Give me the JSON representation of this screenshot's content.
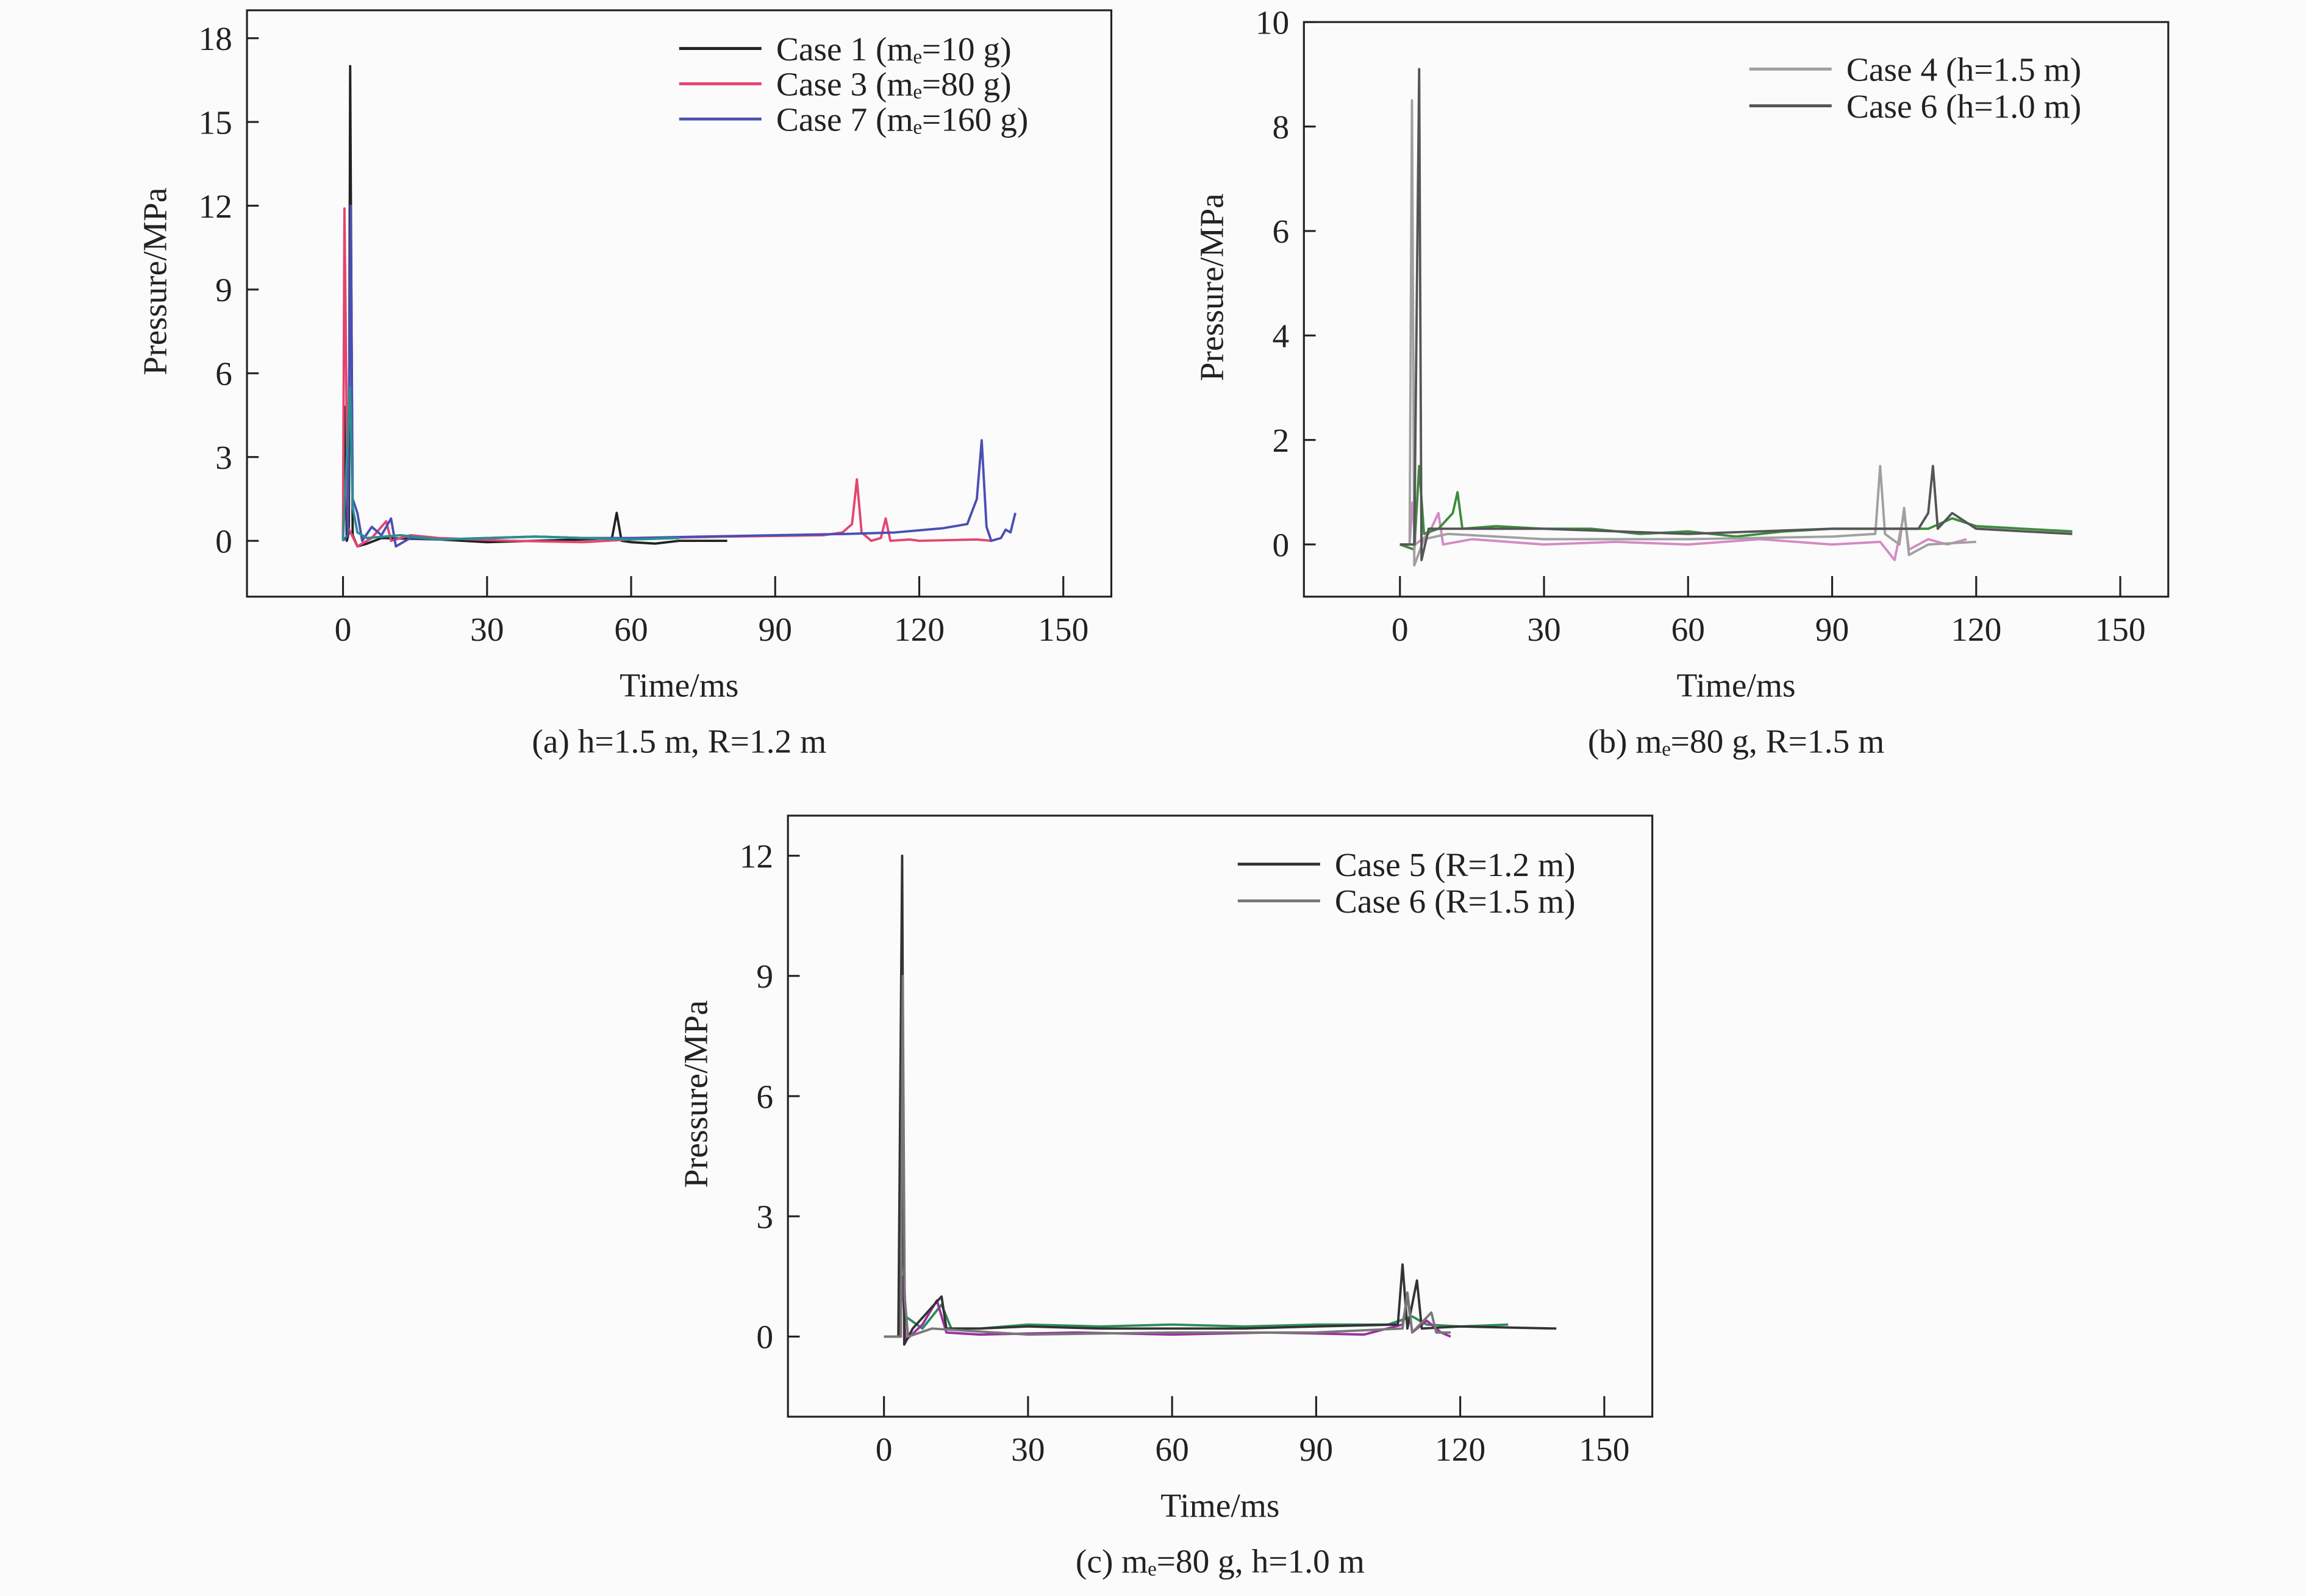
{
  "chart_data": [
    {
      "type": "line",
      "id": "a",
      "caption": "(a) h=1.5 m, R=1.2 m",
      "xlabel": "Time/ms",
      "ylabel": "Pressure/MPa",
      "xlim": [
        -20,
        160
      ],
      "ylim": [
        -2,
        19
      ],
      "xticks": [
        0,
        30,
        60,
        90,
        120,
        150
      ],
      "yticks": [
        0,
        3,
        6,
        9,
        12,
        15,
        18
      ],
      "legend_position": "top-right",
      "series": [
        {
          "name": "Case 1 (mₑ=10 g)",
          "legend": true,
          "color": "#222222",
          "points": [
            [
              0,
              0
            ],
            [
              0.5,
              4.8
            ],
            [
              0.8,
              0
            ],
            [
              1.2,
              0.3
            ],
            [
              1.5,
              17
            ],
            [
              2,
              0.2
            ],
            [
              3,
              -0.2
            ],
            [
              5,
              -0.1
            ],
            [
              8,
              0.1
            ],
            [
              20,
              0.05
            ],
            [
              30,
              -0.05
            ],
            [
              40,
              0
            ],
            [
              50,
              0.05
            ],
            [
              56,
              0.1
            ],
            [
              57,
              1
            ],
            [
              58,
              0
            ],
            [
              60,
              -0.05
            ],
            [
              65,
              -0.1
            ],
            [
              70,
              0
            ],
            [
              80,
              0
            ]
          ]
        },
        {
          "name": "Case 3 (mₑ=80 g)",
          "legend": true,
          "color": "#e4456f",
          "points": [
            [
              0,
              0
            ],
            [
              0.3,
              11.9
            ],
            [
              1,
              0.5
            ],
            [
              3,
              -0.2
            ],
            [
              6,
              0.1
            ],
            [
              9,
              0.7
            ],
            [
              10,
              0
            ],
            [
              14,
              0.2
            ],
            [
              20,
              0.1
            ],
            [
              35,
              0
            ],
            [
              50,
              -0.05
            ],
            [
              65,
              0.1
            ],
            [
              80,
              0.15
            ],
            [
              100,
              0.2
            ],
            [
              104,
              0.3
            ],
            [
              106,
              0.6
            ],
            [
              107,
              2.2
            ],
            [
              108,
              0.3
            ],
            [
              110,
              0
            ],
            [
              112,
              0.1
            ],
            [
              113,
              0.8
            ],
            [
              114,
              0
            ],
            [
              118,
              0.05
            ],
            [
              120,
              0
            ],
            [
              132,
              0.05
            ],
            [
              135,
              0
            ]
          ]
        },
        {
          "name": "Case 7 (mₑ=160 g)",
          "legend": true,
          "color": "#4a4fb4",
          "points": [
            [
              0,
              0
            ],
            [
              1,
              0.2
            ],
            [
              1.6,
              12
            ],
            [
              2,
              1.5
            ],
            [
              3,
              1.0
            ],
            [
              4,
              0
            ],
            [
              6,
              0.5
            ],
            [
              8,
              0.2
            ],
            [
              10,
              0.8
            ],
            [
              11,
              -0.2
            ],
            [
              14,
              0.1
            ],
            [
              20,
              0.05
            ],
            [
              30,
              0.1
            ],
            [
              40,
              0.15
            ],
            [
              50,
              0.1
            ],
            [
              60,
              0.1
            ],
            [
              75,
              0.15
            ],
            [
              90,
              0.2
            ],
            [
              105,
              0.25
            ],
            [
              115,
              0.3
            ],
            [
              125,
              0.45
            ],
            [
              130,
              0.6
            ],
            [
              132,
              1.5
            ],
            [
              133,
              3.6
            ],
            [
              134,
              0.5
            ],
            [
              135,
              0
            ],
            [
              137,
              0.1
            ],
            [
              138,
              0.4
            ],
            [
              139,
              0.3
            ],
            [
              140,
              1
            ]
          ]
        },
        {
          "name": "",
          "legend": false,
          "color": "#2a8f8f",
          "points": [
            [
              0,
              0
            ],
            [
              1.5,
              5.5
            ],
            [
              2,
              1.2
            ],
            [
              3,
              0.3
            ],
            [
              5,
              0.1
            ],
            [
              12,
              0.2
            ],
            [
              20,
              0.05
            ],
            [
              40,
              0.15
            ],
            [
              60,
              0.05
            ],
            [
              70,
              0.1
            ]
          ]
        }
      ]
    },
    {
      "type": "line",
      "id": "b",
      "caption": "(b) mₑ=80 g, R=1.5 m",
      "xlabel": "Time/ms",
      "ylabel": "Pressure/MPa",
      "xlim": [
        -20,
        160
      ],
      "ylim": [
        -1,
        10
      ],
      "xticks": [
        0,
        30,
        60,
        90,
        120,
        150
      ],
      "yticks": [
        0,
        2,
        4,
        6,
        8,
        10
      ],
      "legend_position": "top-right",
      "series": [
        {
          "name": "",
          "legend": false,
          "color": "#d48ac4",
          "points": [
            [
              0,
              0
            ],
            [
              2,
              0
            ],
            [
              2.6,
              0.8
            ],
            [
              3.2,
              0
            ],
            [
              6,
              0.2
            ],
            [
              8,
              0.6
            ],
            [
              9,
              0
            ],
            [
              15,
              0.1
            ],
            [
              30,
              0
            ],
            [
              45,
              0.05
            ],
            [
              60,
              0
            ],
            [
              75,
              0.1
            ],
            [
              90,
              0
            ],
            [
              100,
              0.05
            ],
            [
              103,
              -0.3
            ],
            [
              105,
              0.6
            ],
            [
              106,
              -0.1
            ],
            [
              110,
              0.1
            ],
            [
              114,
              0
            ],
            [
              118,
              0.1
            ]
          ]
        },
        {
          "name": "",
          "legend": false,
          "color": "#3c8c3c",
          "points": [
            [
              0,
              0
            ],
            [
              3,
              -0.1
            ],
            [
              4,
              1.5
            ],
            [
              5,
              0.2
            ],
            [
              8,
              0.3
            ],
            [
              11,
              0.6
            ],
            [
              12,
              1.0
            ],
            [
              13,
              0.3
            ],
            [
              20,
              0.35
            ],
            [
              30,
              0.3
            ],
            [
              40,
              0.3
            ],
            [
              50,
              0.2
            ],
            [
              60,
              0.25
            ],
            [
              70,
              0.15
            ],
            [
              80,
              0.25
            ],
            [
              90,
              0.3
            ],
            [
              100,
              0.3
            ],
            [
              110,
              0.3
            ],
            [
              115,
              0.5
            ],
            [
              120,
              0.35
            ],
            [
              130,
              0.3
            ],
            [
              140,
              0.25
            ]
          ]
        },
        {
          "name": "Case 4 (h=1.5 m)",
          "legend": true,
          "color": "#a0a0a0",
          "points": [
            [
              0,
              0
            ],
            [
              2,
              0
            ],
            [
              2.5,
              8.5
            ],
            [
              3,
              -0.4
            ],
            [
              5,
              0.1
            ],
            [
              10,
              0.2
            ],
            [
              30,
              0.1
            ],
            [
              60,
              0.1
            ],
            [
              90,
              0.15
            ],
            [
              99,
              0.2
            ],
            [
              100,
              1.5
            ],
            [
              101,
              0.2
            ],
            [
              104,
              0
            ],
            [
              105,
              0.7
            ],
            [
              106,
              -0.2
            ],
            [
              110,
              0
            ],
            [
              120,
              0.05
            ]
          ]
        },
        {
          "name": "Case 6 (h=1.0 m)",
          "legend": true,
          "color": "#555555",
          "points": [
            [
              0,
              0
            ],
            [
              3,
              0
            ],
            [
              4,
              9.1
            ],
            [
              4.5,
              -0.3
            ],
            [
              6,
              0.3
            ],
            [
              10,
              0.3
            ],
            [
              30,
              0.3
            ],
            [
              60,
              0.2
            ],
            [
              90,
              0.3
            ],
            [
              108,
              0.3
            ],
            [
              110,
              0.6
            ],
            [
              111,
              1.5
            ],
            [
              112,
              0.3
            ],
            [
              115,
              0.6
            ],
            [
              120,
              0.3
            ],
            [
              140,
              0.2
            ]
          ]
        }
      ]
    },
    {
      "type": "line",
      "id": "c",
      "caption": "(c) mₑ=80 g, h=1.0 m",
      "xlabel": "Time/ms",
      "ylabel": "Pressure/MPa",
      "xlim": [
        -20,
        160
      ],
      "ylim": [
        -2,
        13
      ],
      "xticks": [
        0,
        30,
        60,
        90,
        120,
        150
      ],
      "yticks": [
        0,
        3,
        6,
        9,
        12
      ],
      "legend_position": "top-right",
      "series": [
        {
          "name": "",
          "legend": false,
          "color": "#2e8b57",
          "points": [
            [
              3,
              0
            ],
            [
              3.9,
              2.5
            ],
            [
              4.5,
              0.5
            ],
            [
              8,
              0.2
            ],
            [
              12,
              0.8
            ],
            [
              14,
              0.2
            ],
            [
              20,
              0.2
            ],
            [
              30,
              0.3
            ],
            [
              45,
              0.25
            ],
            [
              60,
              0.3
            ],
            [
              75,
              0.25
            ],
            [
              90,
              0.3
            ],
            [
              105,
              0.3
            ],
            [
              110,
              0.5
            ],
            [
              113,
              0.3
            ],
            [
              120,
              0.25
            ],
            [
              130,
              0.3
            ]
          ]
        },
        {
          "name": "",
          "legend": false,
          "color": "#9b30a0",
          "points": [
            [
              3,
              0
            ],
            [
              3.8,
              1.5
            ],
            [
              4.5,
              -0.1
            ],
            [
              8,
              0.3
            ],
            [
              11,
              0.9
            ],
            [
              13,
              0.1
            ],
            [
              20,
              0.05
            ],
            [
              40,
              0.1
            ],
            [
              60,
              0.05
            ],
            [
              80,
              0.1
            ],
            [
              100,
              0.05
            ],
            [
              108,
              0.3
            ],
            [
              109,
              1.0
            ],
            [
              110,
              0.1
            ],
            [
              113,
              0.4
            ],
            [
              116,
              0.1
            ],
            [
              118,
              0
            ]
          ]
        },
        {
          "name": "Case 5 (R=1.2 m)",
          "legend": true,
          "color": "#333333",
          "points": [
            [
              0,
              0
            ],
            [
              3,
              0
            ],
            [
              3.8,
              12
            ],
            [
              4.2,
              -0.2
            ],
            [
              6,
              0.2
            ],
            [
              12,
              1.0
            ],
            [
              13,
              0.2
            ],
            [
              20,
              0.2
            ],
            [
              30,
              0.25
            ],
            [
              45,
              0.2
            ],
            [
              60,
              0.2
            ],
            [
              75,
              0.2
            ],
            [
              90,
              0.25
            ],
            [
              107,
              0.3
            ],
            [
              108,
              1.8
            ],
            [
              109,
              0.2
            ],
            [
              111,
              1.4
            ],
            [
              112,
              0.2
            ],
            [
              120,
              0.25
            ],
            [
              140,
              0.2
            ]
          ]
        },
        {
          "name": "Case 6 (R=1.5 m)",
          "legend": true,
          "color": "#777777",
          "points": [
            [
              0,
              0
            ],
            [
              3.5,
              0
            ],
            [
              3.9,
              9
            ],
            [
              4.3,
              1
            ],
            [
              5,
              0
            ],
            [
              10,
              0.2
            ],
            [
              30,
              0.05
            ],
            [
              60,
              0.1
            ],
            [
              90,
              0.1
            ],
            [
              108,
              0.2
            ],
            [
              109,
              1.1
            ],
            [
              110,
              0.1
            ],
            [
              114,
              0.6
            ],
            [
              115,
              0.1
            ],
            [
              118,
              0.1
            ]
          ]
        }
      ]
    }
  ]
}
